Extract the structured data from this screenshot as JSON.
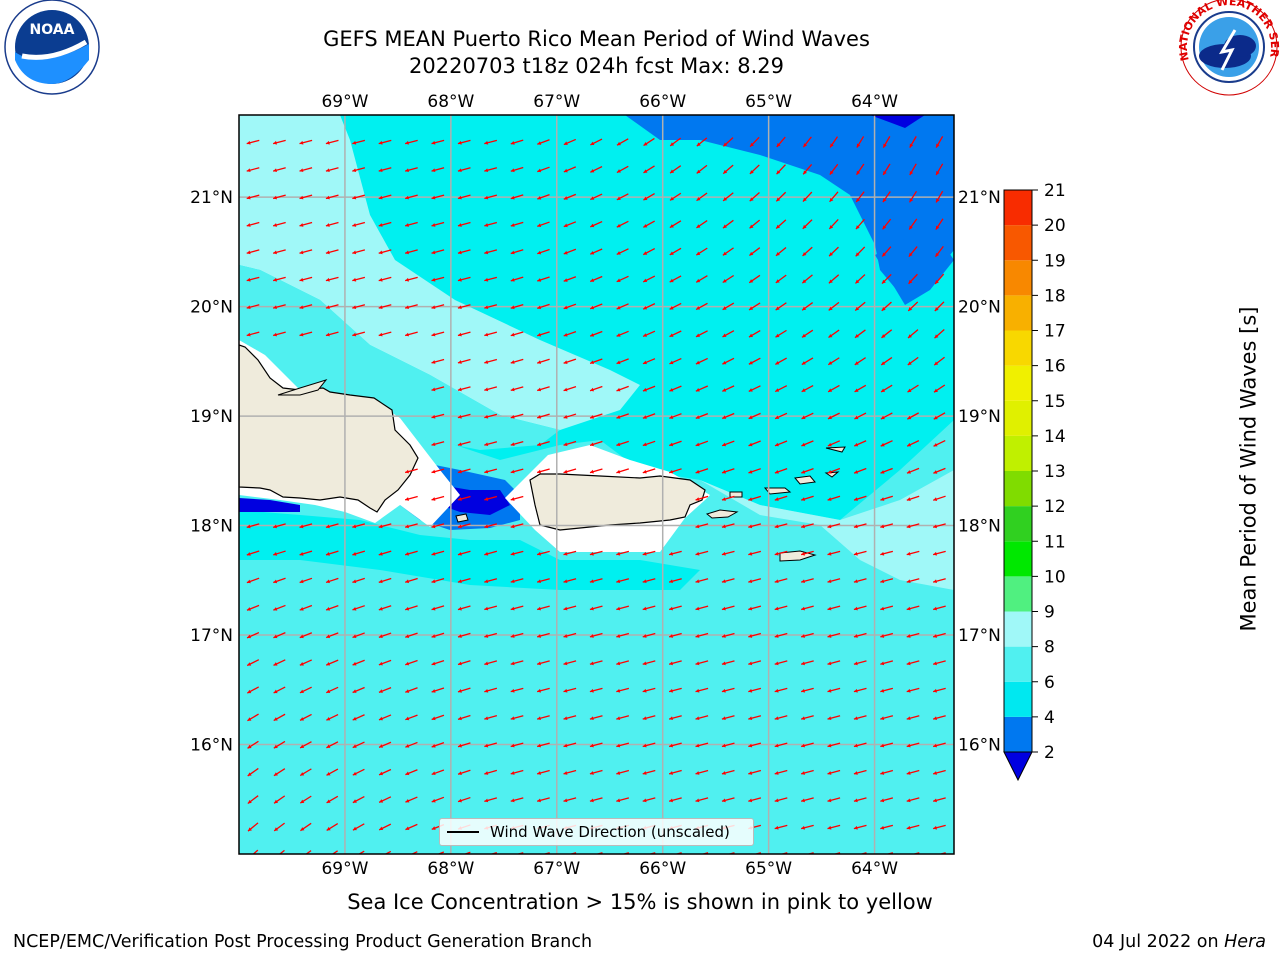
{
  "title_line1": "GEFS MEAN Puerto Rico Mean Period of Wind Waves",
  "title_line2": "20220703 t18z 024h fcst   Max: 8.29",
  "logos": {
    "left": {
      "icon": "noaa-logo-icon",
      "text": "NOAA",
      "ring_text": "NATIONAL OCEANIC AND ATMOSPHERIC ADMINISTRATION · U.S. DEPARTMENT OF COMMERCE"
    },
    "right": {
      "icon": "nws-logo-icon",
      "ring_text": "NATIONAL WEATHER SERVICE"
    }
  },
  "map": {
    "lon_labels": [
      "69°W",
      "68°W",
      "67°W",
      "66°W",
      "65°W",
      "64°W"
    ],
    "lat_labels": [
      "21°N",
      "20°N",
      "19°N",
      "18°N",
      "17°N",
      "16°N"
    ],
    "lon_range": [
      -70.0,
      -63.25
    ],
    "lat_range": [
      15.0,
      21.75
    ],
    "legend_label": "Wind Wave Direction (unscaled)",
    "arrow_color": "#ff0000",
    "land_color": "#efebdc",
    "grid": true
  },
  "colorbar": {
    "label": "Mean Period of Wind Waves [s]",
    "levels": [
      2,
      4,
      6,
      8,
      9,
      10,
      11,
      12,
      13,
      14,
      15,
      16,
      17,
      18,
      19,
      20,
      21
    ],
    "tick_labels": [
      "2",
      "4",
      "6",
      "8",
      "9",
      "10",
      "11",
      "12",
      "13",
      "14",
      "15",
      "16",
      "17",
      "18",
      "19",
      "20",
      "21"
    ],
    "colors": [
      "#0078f0",
      "#00e8f0",
      "#50f0f0",
      "#a0f8f8",
      "#50f080",
      "#00e800",
      "#30d020",
      "#80dc00",
      "#c0f000",
      "#e0f000",
      "#f0f000",
      "#f8d800",
      "#f8b000",
      "#f88800",
      "#f85800",
      "#f82c00"
    ],
    "under_color": "#0000e0",
    "over_color": "#ff0000"
  },
  "field_colors": {
    "dark_blue": "#0000e0",
    "blue": "#0078f0",
    "cyan": "#00f0f0",
    "light_cyan": "#50f0f0",
    "pale_cyan": "#a0f8f8"
  },
  "note": "Sea Ice Concentration > 15% is shown in pink to yellow",
  "footer_left": "NCEP/EMC/Verification Post Processing Product Generation Branch",
  "footer_right_prefix": "04 Jul 2022 on ",
  "footer_right_machine": "Hera"
}
